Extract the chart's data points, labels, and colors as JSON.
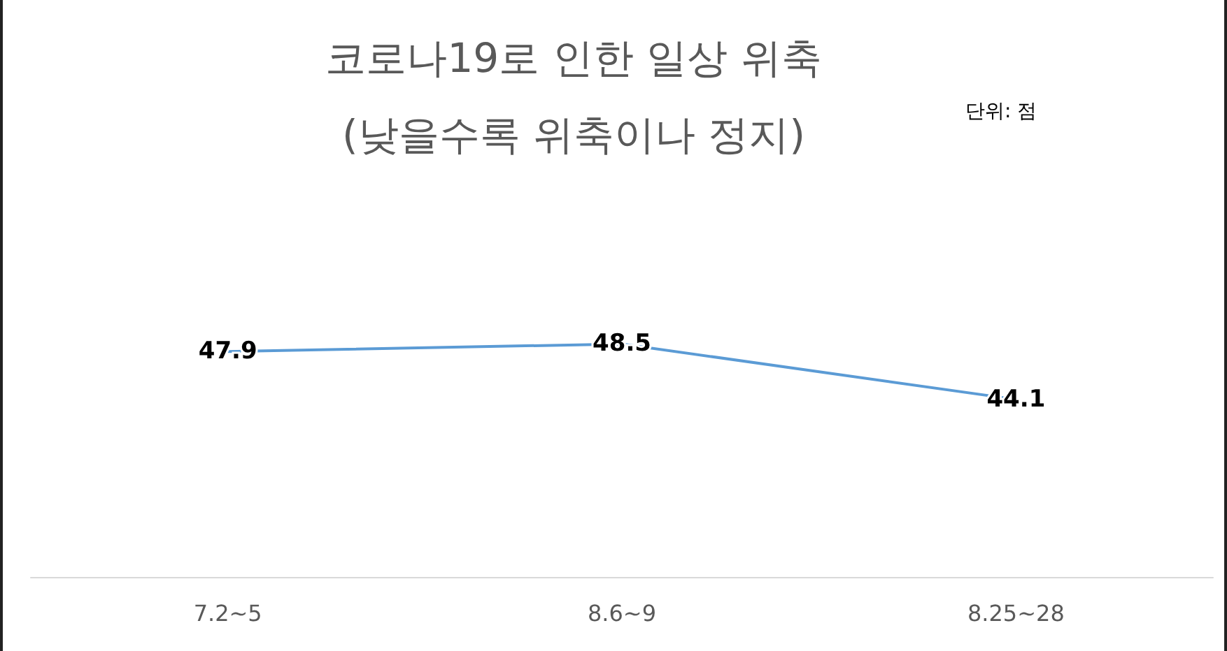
{
  "chart_data": {
    "type": "line",
    "title": "코로나19로 인한 일상 위축",
    "subtitle": "(낮을수록 위축이나 정지)",
    "annotations": [
      "단위: 점"
    ],
    "categories": [
      "7.2~5",
      "8.6~9",
      "8.25~28"
    ],
    "series": [
      {
        "color": "#5b9bd5",
        "values": [
          47.9,
          48.5,
          44.1
        ]
      }
    ],
    "data_labels": true,
    "marker": "none",
    "line_style": "solid",
    "tick_labels": "x"
  }
}
